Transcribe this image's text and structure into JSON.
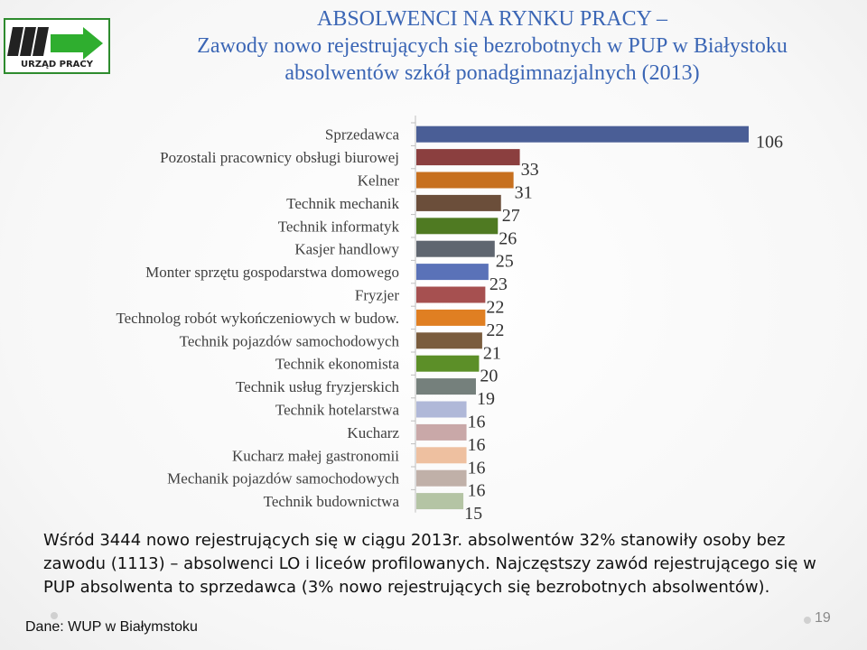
{
  "header": {
    "logo_text": "URZĄD PRACY",
    "title_line1": "ABSOLWENCI NA RYNKU PRACY –",
    "title_line2": "Zawody nowo rejestrujących się bezrobotnych w PUP w Białystoku",
    "title_line3": "absolwentów szkół ponadgimnazjalnych (2013)"
  },
  "chart_data": {
    "type": "bar",
    "orientation": "horizontal",
    "categories": [
      "Sprzedawca",
      "Pozostali pracownicy obsługi biurowej",
      "Kelner",
      "Technik mechanik",
      "Technik informatyk",
      "Kasjer handlowy",
      "Monter sprzętu gospodarstwa domowego",
      "Fryzjer",
      "Technolog robót wykończeniowych w budow.",
      "Technik pojazdów samochodowych",
      "Technik ekonomista",
      "Technik usług fryzjerskich",
      "Technik hotelarstwa",
      "Kucharz",
      "Kucharz małej gastronomii",
      "Mechanik pojazdów samochodowych",
      "Technik budownictwa"
    ],
    "values": [
      106,
      33,
      31,
      27,
      26,
      25,
      23,
      22,
      22,
      21,
      20,
      19,
      16,
      16,
      16,
      16,
      15
    ],
    "value_labels": [
      "106",
      "33",
      "31",
      "27",
      "26",
      "25",
      "23",
      "22",
      "22",
      "21",
      "20",
      "19",
      "16",
      "16",
      "16",
      "16",
      "15"
    ],
    "colors": [
      "#4a5e96",
      "#8b3f3f",
      "#c7701f",
      "#6b4e3a",
      "#4f7a22",
      "#5f6670",
      "#5a72b8",
      "#a65050",
      "#e07f22",
      "#7a5c3d",
      "#5c8f28",
      "#75807c",
      "#b0b8d8",
      "#c9a8a8",
      "#eec0a0",
      "#c0b0a8",
      "#b4c4a4"
    ],
    "xlim": [
      0,
      106
    ],
    "grid": false,
    "legend": "none"
  },
  "summary": {
    "text": "Wśród 3444 nowo rejestrujących się w ciągu 2013r. absolwentów 32% stanowiły osoby bez zawodu (1113) – absolwenci LO i liceów profilowanych. Najczęstszy zawód rejestrującego się w PUP absolwenta to sprzedawca (3% nowo rejestrujących się bezrobotnych absolwentów)."
  },
  "footer": {
    "source": "Dane: WUP w Białymstoku",
    "page_number": "19"
  }
}
